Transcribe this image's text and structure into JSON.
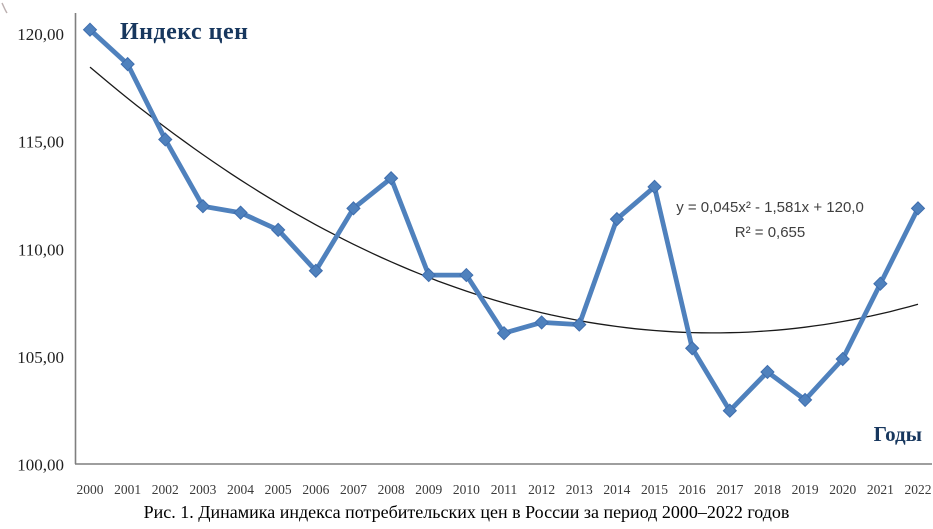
{
  "figure": {
    "caption": "Рис. 1. Динамика индекса потребительских цен в России за период 2000–2022 годов"
  },
  "chart_data": {
    "type": "line",
    "title": "Индекс цен",
    "xlabel": "Годы",
    "ylabel": "Индекс цен",
    "x": [
      2000,
      2001,
      2002,
      2003,
      2004,
      2005,
      2006,
      2007,
      2008,
      2009,
      2010,
      2011,
      2012,
      2013,
      2014,
      2015,
      2016,
      2017,
      2018,
      2019,
      2020,
      2021,
      2022
    ],
    "series": [
      {
        "name": "Индекс цен",
        "color": "#4f81bd",
        "marker": "diamond",
        "marker_border": "#3f6eae",
        "values": [
          120.2,
          118.6,
          115.1,
          112.0,
          111.7,
          110.9,
          109.0,
          111.9,
          113.3,
          108.8,
          108.8,
          106.1,
          106.6,
          106.5,
          111.4,
          112.9,
          105.4,
          102.5,
          104.3,
          103.0,
          104.9,
          108.4,
          111.9
        ]
      }
    ],
    "trendline": {
      "type": "polynomial-2",
      "equation": "y = 0,045x² - 1,581x + 120,0",
      "r_squared_label": "R² = 0,655",
      "coefficients": {
        "a": 0.045,
        "b": -1.581,
        "c": 120.0
      },
      "color": "#1a1a1a"
    },
    "ylim": [
      100,
      120
    ],
    "yticks": [
      120,
      115,
      110,
      105,
      100
    ],
    "ytick_labels": [
      "120,00",
      "115,00",
      "110,00",
      "105,00",
      "100,00"
    ],
    "grid": false,
    "legend": "none",
    "axis_color": "#7f7f7f"
  }
}
